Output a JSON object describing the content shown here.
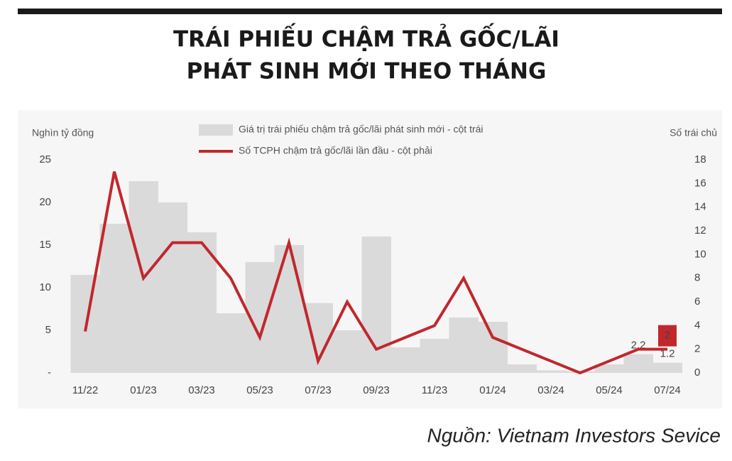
{
  "chart_data": {
    "type": "bar",
    "title": [
      "TRÁI PHIẾU CHẬM TRẢ GỐC/LÃI",
      "PHÁT SINH MỚI THEO THÁNG"
    ],
    "y_label": "Nghìn tỷ đồng",
    "y2_label": "Số trái chủ",
    "source": "Nguồn: Vietnam Investors Sevice",
    "categories": [
      "11/22",
      null,
      "01/23",
      null,
      "03/23",
      null,
      "05/23",
      null,
      "07/23",
      null,
      "09/23",
      null,
      "11/23",
      null,
      "01/24",
      null,
      "03/24",
      null,
      "05/24",
      null,
      "07/24"
    ],
    "series": [
      {
        "name": "Giá trị trái phiếu chậm trả gốc/lãi phát sinh mới - cột trái",
        "type": "bar",
        "color": "#dadada",
        "values": [
          11.5,
          17.5,
          22.5,
          20,
          16.5,
          7,
          13,
          15,
          8.2,
          5,
          16,
          3,
          4,
          6.5,
          6,
          1,
          0.3,
          0.2,
          1,
          2.2,
          1.2
        ],
        "value_labels": [
          null,
          null,
          null,
          null,
          null,
          null,
          null,
          null,
          null,
          null,
          null,
          null,
          null,
          null,
          null,
          null,
          null,
          null,
          null,
          "2.2",
          "1.2"
        ]
      },
      {
        "name": "Số TCPH chậm trả gốc/lãi lần đầu - cột phải",
        "type": "line",
        "axis": "y2",
        "color": "#c1272d",
        "values": [
          3.5,
          17,
          8,
          11,
          11,
          8,
          3,
          11,
          1,
          6,
          2,
          3,
          4,
          8,
          3,
          2,
          1,
          0,
          1,
          2,
          2
        ],
        "value_labels": [
          null,
          null,
          null,
          null,
          null,
          null,
          null,
          null,
          null,
          null,
          null,
          null,
          null,
          null,
          null,
          null,
          null,
          null,
          null,
          null,
          "2"
        ]
      }
    ],
    "ylim": [
      0,
      25
    ],
    "yticks": [
      {
        "value": 0,
        "label": "-"
      },
      5,
      10,
      15,
      20,
      25
    ],
    "y2lim": [
      0,
      18
    ],
    "y2ticks": [
      0,
      2,
      4,
      6,
      8,
      10,
      12,
      14,
      16,
      18
    ],
    "grid": false
  }
}
